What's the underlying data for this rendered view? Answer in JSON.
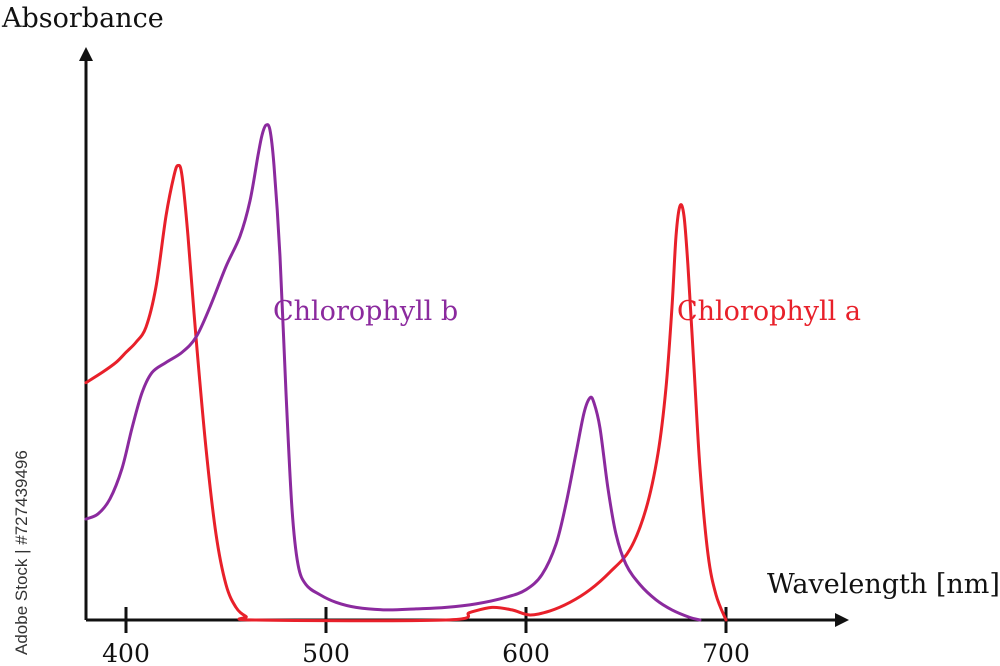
{
  "chart_data": {
    "type": "line",
    "title": "",
    "xlabel": "Wavelength [nm]",
    "ylabel": "Absorbance",
    "xlim": [
      380,
      760
    ],
    "ylim": [
      0,
      1.0
    ],
    "x_ticks": [
      {
        "value": 400,
        "label": "400"
      },
      {
        "value": 500,
        "label": "500"
      },
      {
        "value": 600,
        "label": "600"
      },
      {
        "value": 700,
        "label": "700"
      }
    ],
    "grid": false,
    "legend": "inline labels",
    "series": [
      {
        "name": "Chlorophyll a",
        "color": "#e8202a",
        "points": [
          [
            380,
            0.47
          ],
          [
            388,
            0.49
          ],
          [
            395,
            0.51
          ],
          [
            400,
            0.53
          ],
          [
            405,
            0.55
          ],
          [
            410,
            0.58
          ],
          [
            415,
            0.66
          ],
          [
            420,
            0.8
          ],
          [
            424,
            0.88
          ],
          [
            426,
            0.9
          ],
          [
            428,
            0.88
          ],
          [
            431,
            0.76
          ],
          [
            435,
            0.56
          ],
          [
            440,
            0.34
          ],
          [
            445,
            0.17
          ],
          [
            450,
            0.07
          ],
          [
            455,
            0.025
          ],
          [
            460,
            0.007
          ],
          [
            465,
            0.0
          ],
          [
            560,
            0.0
          ],
          [
            572,
            0.015
          ],
          [
            583,
            0.025
          ],
          [
            593,
            0.02
          ],
          [
            602,
            0.01
          ],
          [
            612,
            0.018
          ],
          [
            622,
            0.035
          ],
          [
            632,
            0.06
          ],
          [
            642,
            0.095
          ],
          [
            652,
            0.14
          ],
          [
            660,
            0.22
          ],
          [
            666,
            0.33
          ],
          [
            670,
            0.46
          ],
          [
            673,
            0.62
          ],
          [
            675,
            0.76
          ],
          [
            677,
            0.82
          ],
          [
            679,
            0.8
          ],
          [
            681,
            0.7
          ],
          [
            684,
            0.5
          ],
          [
            687,
            0.3
          ],
          [
            691,
            0.13
          ],
          [
            695,
            0.05
          ],
          [
            700,
            0.0
          ]
        ]
      },
      {
        "name": "Chlorophyll b",
        "color": "#8b2a9e",
        "points": [
          [
            380,
            0.2
          ],
          [
            386,
            0.21
          ],
          [
            392,
            0.24
          ],
          [
            398,
            0.3
          ],
          [
            403,
            0.38
          ],
          [
            408,
            0.45
          ],
          [
            413,
            0.49
          ],
          [
            420,
            0.51
          ],
          [
            428,
            0.53
          ],
          [
            435,
            0.56
          ],
          [
            442,
            0.62
          ],
          [
            450,
            0.7
          ],
          [
            457,
            0.76
          ],
          [
            462,
            0.83
          ],
          [
            466,
            0.92
          ],
          [
            468,
            0.96
          ],
          [
            470,
            0.98
          ],
          [
            472,
            0.97
          ],
          [
            474,
            0.9
          ],
          [
            477,
            0.72
          ],
          [
            480,
            0.45
          ],
          [
            483,
            0.22
          ],
          [
            486,
            0.11
          ],
          [
            490,
            0.07
          ],
          [
            497,
            0.05
          ],
          [
            505,
            0.035
          ],
          [
            515,
            0.025
          ],
          [
            530,
            0.02
          ],
          [
            545,
            0.022
          ],
          [
            560,
            0.025
          ],
          [
            575,
            0.032
          ],
          [
            590,
            0.045
          ],
          [
            600,
            0.06
          ],
          [
            608,
            0.09
          ],
          [
            615,
            0.15
          ],
          [
            620,
            0.23
          ],
          [
            625,
            0.33
          ],
          [
            629,
            0.41
          ],
          [
            632,
            0.44
          ],
          [
            634,
            0.43
          ],
          [
            637,
            0.38
          ],
          [
            641,
            0.26
          ],
          [
            645,
            0.17
          ],
          [
            650,
            0.11
          ],
          [
            657,
            0.07
          ],
          [
            665,
            0.04
          ],
          [
            673,
            0.02
          ],
          [
            682,
            0.005
          ],
          [
            687,
            0.0
          ]
        ]
      }
    ],
    "annotations": [
      {
        "series": "Chlorophyll b",
        "text": "Chlorophyll b",
        "at": [
          485,
          0.54
        ]
      },
      {
        "series": "Chlorophyll a",
        "text": "Chlorophyll a",
        "at": [
          681,
          0.54
        ]
      }
    ]
  },
  "watermark": {
    "side_text": "Adobe Stock | #727439496"
  }
}
